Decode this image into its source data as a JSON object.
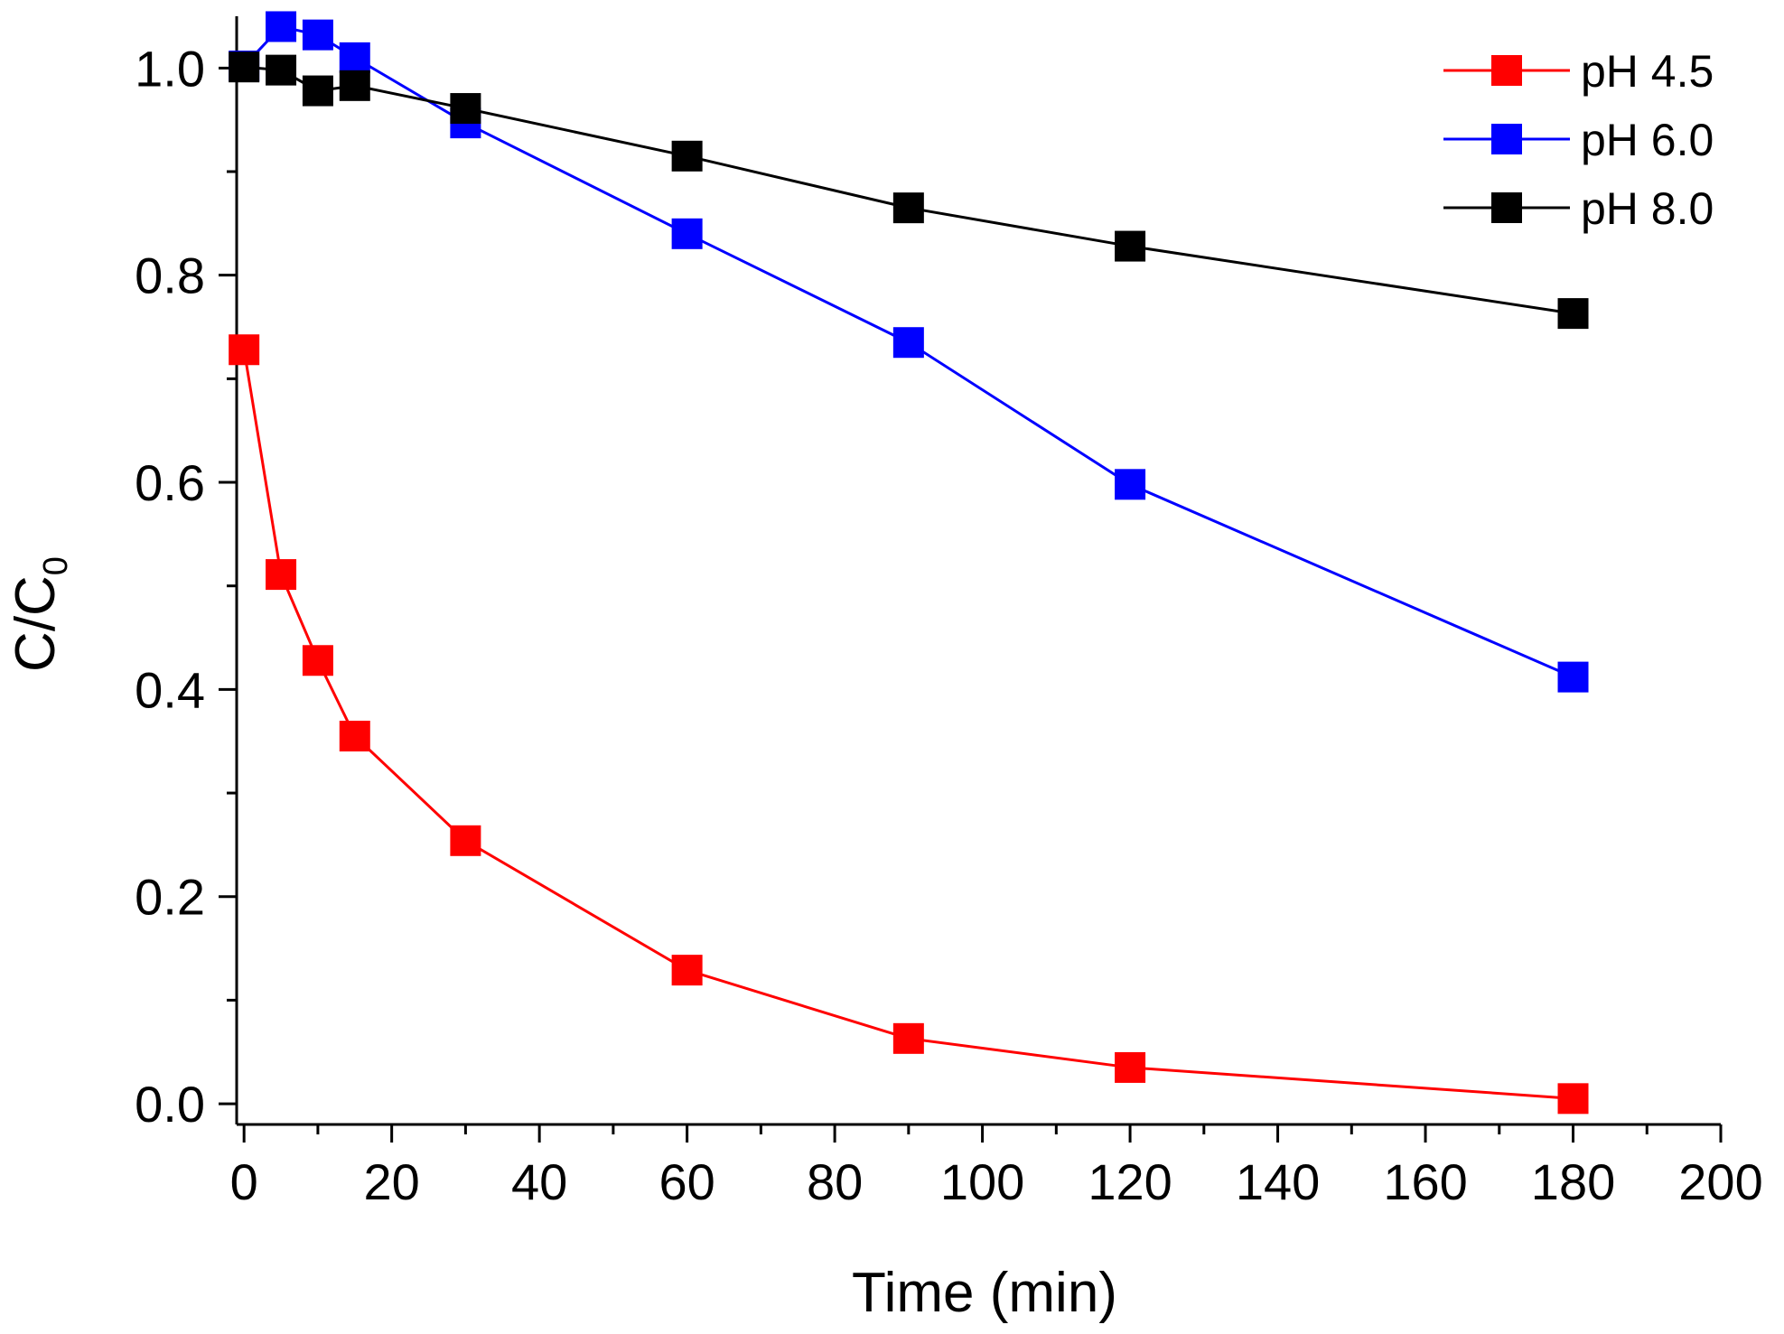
{
  "chart_data": {
    "type": "line",
    "title": "",
    "xlabel": "Time (min)",
    "ylabel": "C/C",
    "ylabel_subscript": "0",
    "xlim": [
      -1,
      200
    ],
    "ylim": [
      -0.02,
      1.05
    ],
    "xticks": [
      0,
      20,
      40,
      60,
      80,
      100,
      120,
      140,
      160,
      180,
      200
    ],
    "xtick_labels": [
      "0",
      "20",
      "40",
      "60",
      "80",
      "100",
      "120",
      "140",
      "160",
      "180",
      "200"
    ],
    "yticks": [
      0.0,
      0.2,
      0.4,
      0.6,
      0.8,
      1.0
    ],
    "ytick_labels": [
      "0.0",
      "0.2",
      "0.4",
      "0.6",
      "0.8",
      "1.0"
    ],
    "grid": false,
    "legend_position": "top-right",
    "x": [
      0,
      5,
      10,
      15,
      30,
      60,
      90,
      120,
      180
    ],
    "series": [
      {
        "name": "pH 4.5",
        "color": "#ff0000",
        "marker": "square",
        "values": [
          0.728,
          0.511,
          0.428,
          0.355,
          0.254,
          0.129,
          0.063,
          0.035,
          0.005
        ]
      },
      {
        "name": "pH 6.0",
        "color": "#0000ff",
        "marker": "square",
        "values": [
          1.002,
          1.04,
          1.032,
          1.01,
          0.947,
          0.84,
          0.735,
          0.598,
          0.412
        ]
      },
      {
        "name": "pH 8.0",
        "color": "#000000",
        "marker": "square",
        "values": [
          1.001,
          0.998,
          0.978,
          0.983,
          0.961,
          0.915,
          0.865,
          0.828,
          0.763
        ]
      }
    ]
  }
}
